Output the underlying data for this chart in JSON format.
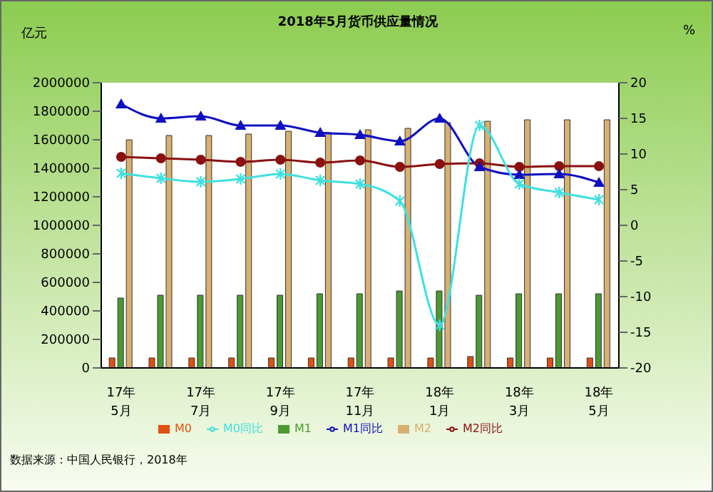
{
  "chart_data": {
    "type": "bar",
    "title": "2018年5月货币供应量情况",
    "ylabel": "亿元",
    "y2label": "%",
    "categories": [
      "17年\n5月",
      null,
      "17年\n7月",
      null,
      "17年\n9月",
      null,
      "17年\n11月",
      null,
      "18年\n1月",
      null,
      "18年\n3月",
      null,
      "18年\n5月"
    ],
    "series": [
      {
        "name": "M0",
        "color": "#e05010",
        "values": [
          70000,
          70000,
          70000,
          70000,
          70000,
          70000,
          70000,
          70000,
          70000,
          80000,
          70000,
          70000,
          70000
        ]
      },
      {
        "name": "M1",
        "color": "#4a9a30",
        "values": [
          490000,
          510000,
          510000,
          510000,
          510000,
          520000,
          520000,
          540000,
          540000,
          510000,
          520000,
          520000,
          520000
        ]
      },
      {
        "name": "M2",
        "color": "#d8b070",
        "values": [
          1600000,
          1630000,
          1630000,
          1640000,
          1660000,
          1650000,
          1670000,
          1680000,
          1720000,
          1730000,
          1740000,
          1740000,
          1740000
        ]
      },
      {
        "name": "M0同比",
        "type": "line",
        "axis": "y2",
        "marker": "cross",
        "color": "#40e0e0",
        "values": [
          7.3,
          6.6,
          6.1,
          6.5,
          7.2,
          6.3,
          5.8,
          3.4,
          -14,
          14,
          5.8,
          4.6,
          3.6
        ]
      },
      {
        "name": "M1同比",
        "type": "line",
        "axis": "y2",
        "marker": "triangle",
        "color": "#1010c0",
        "values": [
          17,
          15,
          15.3,
          14,
          14,
          13,
          12.7,
          11.8,
          15,
          8.2,
          7.1,
          7.2,
          6
        ]
      },
      {
        "name": "M2同比",
        "type": "line",
        "axis": "y2",
        "marker": "circle",
        "color": "#8b1010",
        "values": [
          9.6,
          9.4,
          9.2,
          8.9,
          9.2,
          8.8,
          9.1,
          8.2,
          8.6,
          8.7,
          8.2,
          8.3,
          8.3
        ]
      }
    ],
    "ylim": [
      0,
      2000000
    ],
    "yticks": [
      0,
      200000,
      400000,
      600000,
      800000,
      1000000,
      1200000,
      1400000,
      1600000,
      1800000,
      2000000
    ],
    "y2lim": [
      -20,
      20
    ],
    "y2ticks": [
      -20,
      -15,
      -10,
      -5,
      0,
      5,
      10,
      15,
      20
    ],
    "grid": false,
    "legend": "bottom",
    "annotations": [
      "数据来源：中国人民银行，2018年"
    ]
  }
}
